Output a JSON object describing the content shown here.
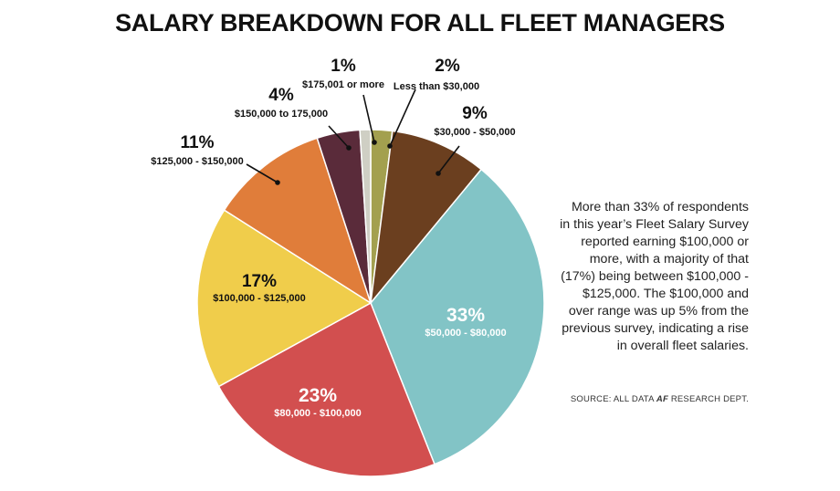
{
  "chart_data": {
    "type": "pie",
    "title": "SALARY BREAKDOWN FOR ALL FLEET MANAGERS",
    "slices": [
      {
        "percent": 2,
        "label": "2%",
        "range": "Less than $30,000",
        "color": "#a3a04f"
      },
      {
        "percent": 9,
        "label": "9%",
        "range": "$30,000 - $50,000",
        "color": "#6b3f1f"
      },
      {
        "percent": 33,
        "label": "33%",
        "range": "$50,000 - $80,000",
        "color": "#82c4c6"
      },
      {
        "percent": 23,
        "label": "23%",
        "range": "$80,000 - $100,000",
        "color": "#d24f4f"
      },
      {
        "percent": 17,
        "label": "17%",
        "range": "$100,000 - $125,000",
        "color": "#f0cd4b"
      },
      {
        "percent": 11,
        "label": "11%",
        "range": "$125,000 - $150,000",
        "color": "#e07d3a"
      },
      {
        "percent": 4,
        "label": "4%",
        "range": "$150,000 to 175,000",
        "color": "#5a2b3a"
      },
      {
        "percent": 1,
        "label": "1%",
        "range": "$175,001 or more",
        "color": "#cfcfc4"
      }
    ]
  },
  "note": "More than 33% of respondents in this year’s Fleet Salary Survey reported earning $100,000 or more, with a majority of that (17%) being between $100,000 - $125,000. The $100,000 and over range was up 5% from the previous survey, indicating a rise in overall fleet salaries.",
  "source": {
    "prefix": "SOURCE: ALL DATA ",
    "emph": "AF",
    "suffix": " RESEARCH DEPT."
  }
}
